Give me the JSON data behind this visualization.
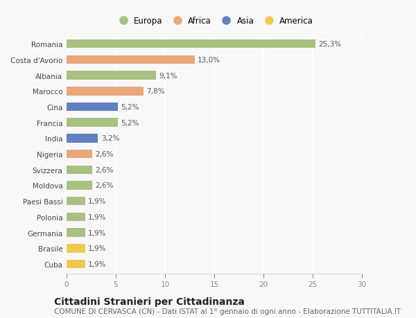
{
  "countries": [
    "Romania",
    "Costa d'Avorio",
    "Albania",
    "Marocco",
    "Cina",
    "Francia",
    "India",
    "Nigeria",
    "Svizzera",
    "Moldova",
    "Paesi Bassi",
    "Polonia",
    "Germania",
    "Brasile",
    "Cuba"
  ],
  "values": [
    25.3,
    13.0,
    9.1,
    7.8,
    5.2,
    5.2,
    3.2,
    2.6,
    2.6,
    2.6,
    1.9,
    1.9,
    1.9,
    1.9,
    1.9
  ],
  "labels": [
    "25,3%",
    "13,0%",
    "9,1%",
    "7,8%",
    "5,2%",
    "5,2%",
    "3,2%",
    "2,6%",
    "2,6%",
    "2,6%",
    "1,9%",
    "1,9%",
    "1,9%",
    "1,9%",
    "1,9%"
  ],
  "continents": [
    "Europa",
    "Africa",
    "Europa",
    "Africa",
    "Asia",
    "Europa",
    "Asia",
    "Africa",
    "Europa",
    "Europa",
    "Europa",
    "Europa",
    "Europa",
    "America",
    "America"
  ],
  "colors": {
    "Europa": "#a8c080",
    "Africa": "#e8a87a",
    "Asia": "#6080c0",
    "America": "#f0c850"
  },
  "legend_order": [
    "Europa",
    "Africa",
    "Asia",
    "America"
  ],
  "title": "Cittadini Stranieri per Cittadinanza",
  "subtitle": "COMUNE DI CERVASCA (CN) - Dati ISTAT al 1° gennaio di ogni anno - Elaborazione TUTTITALIA.IT",
  "xlim": [
    0,
    30
  ],
  "xticks": [
    0,
    5,
    10,
    15,
    20,
    25,
    30
  ],
  "background_color": "#f8f8f8",
  "bar_height": 0.55,
  "title_fontsize": 10,
  "subtitle_fontsize": 7.5,
  "label_fontsize": 7.5,
  "tick_fontsize": 7.5,
  "legend_fontsize": 8.5
}
